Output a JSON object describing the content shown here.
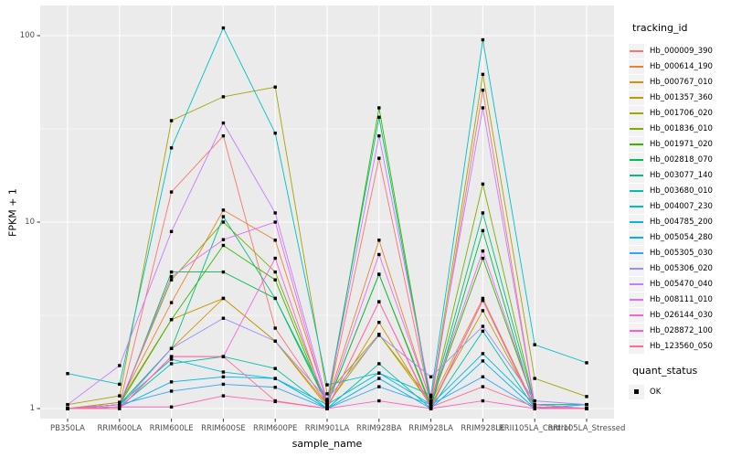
{
  "figure": {
    "background": "#FFFFFF",
    "panel_background": "#EBEBEB",
    "grid_color": "#FFFFFF",
    "axis_text_color": "#4D4D4D",
    "tick_mark_color": "#333333",
    "point_color": "#000000"
  },
  "chart_data": {
    "type": "line",
    "title": "",
    "xlabel": "sample_name",
    "ylabel": "FPKM + 1",
    "y_scale": "log10",
    "y_ticks": [
      1,
      10,
      100
    ],
    "y_tick_labels": [
      "1",
      "10",
      "100"
    ],
    "y_minor_ticks": [
      3.162,
      31.62
    ],
    "ylim": [
      0.88,
      145
    ],
    "grid": true,
    "legend_position": "right",
    "point_shape": "filled-square",
    "categories": [
      "PB350LA",
      "RRIM600LA",
      "RRIM600LE",
      "RRIM600SE",
      "RRIM600PE",
      "RRIM901LA",
      "RRIM928BA",
      "RRIM928LA",
      "RRIM928LE",
      "RRII105LA_Control",
      "RRII105LA_Stressed"
    ],
    "series": [
      {
        "name": "Hb_000009_390",
        "color": "#F8766D",
        "values": [
          1.0,
          1.05,
          14.5,
          29,
          2.7,
          1.05,
          22,
          1.05,
          51,
          1.05,
          1.0
        ]
      },
      {
        "name": "Hb_000614_190",
        "color": "#EA8331",
        "values": [
          1.0,
          1.08,
          3.7,
          11.6,
          8.0,
          1.08,
          8.0,
          1.08,
          3.9,
          1.02,
          1.0
        ]
      },
      {
        "name": "Hb_000767_010",
        "color": "#D89000",
        "values": [
          1.0,
          1.05,
          2.1,
          3.9,
          2.3,
          1.02,
          2.9,
          1.02,
          3.8,
          1.0,
          1.0
        ]
      },
      {
        "name": "Hb_001357_360",
        "color": "#C09B00",
        "values": [
          1.0,
          1.08,
          3.0,
          3.9,
          2.3,
          1.05,
          2.5,
          1.05,
          3.35,
          1.02,
          1.0
        ]
      },
      {
        "name": "Hb_001706_020",
        "color": "#A3A500",
        "values": [
          1.05,
          1.17,
          35,
          47,
          53,
          1.2,
          2.5,
          1.1,
          62,
          1.45,
          1.16
        ]
      },
      {
        "name": "Hb_001836_010",
        "color": "#7CAE00",
        "values": [
          1.0,
          1.05,
          4.9,
          10,
          5.4,
          1.05,
          5.25,
          1.05,
          16,
          1.05,
          1.0
        ]
      },
      {
        "name": "Hb_001971_020",
        "color": "#39B600",
        "values": [
          1.0,
          1.05,
          3.0,
          7.5,
          4.9,
          1.02,
          41,
          1.08,
          6.4,
          1.05,
          1.05
        ]
      },
      {
        "name": "Hb_002818_070",
        "color": "#00BB4E",
        "values": [
          1.0,
          1.02,
          5.4,
          5.4,
          3.9,
          1.05,
          5.25,
          1.02,
          9.0,
          1.0,
          1.0
        ]
      },
      {
        "name": "Hb_003077_140",
        "color": "#00BF7D",
        "values": [
          1.0,
          1.05,
          2.1,
          10.7,
          3.9,
          1.1,
          36.5,
          1.05,
          11.2,
          1.05,
          1.05
        ]
      },
      {
        "name": "Hb_003680_010",
        "color": "#00C1A3",
        "values": [
          1.0,
          1.02,
          1.74,
          1.9,
          1.64,
          1.0,
          1.74,
          1.0,
          2.6,
          1.0,
          1.0
        ]
      },
      {
        "name": "Hb_004007_230",
        "color": "#00BFC4",
        "values": [
          1.54,
          1.35,
          25,
          110,
          30,
          1.34,
          1.55,
          1.18,
          95,
          2.2,
          1.76
        ]
      },
      {
        "name": "Hb_004785_200",
        "color": "#00BAE0",
        "values": [
          1.0,
          1.05,
          1.84,
          1.57,
          1.45,
          1.05,
          1.55,
          1.05,
          1.97,
          1.05,
          1.0
        ]
      },
      {
        "name": "Hb_005054_280",
        "color": "#00B0F6",
        "values": [
          1.0,
          1.02,
          1.39,
          1.48,
          1.45,
          1.0,
          1.45,
          1.0,
          1.8,
          1.0,
          1.0
        ]
      },
      {
        "name": "Hb_005305_030",
        "color": "#35A2FF",
        "values": [
          1.0,
          1.05,
          1.24,
          1.35,
          1.3,
          1.0,
          1.31,
          1.05,
          1.48,
          1.0,
          1.05
        ]
      },
      {
        "name": "Hb_005306_020",
        "color": "#9590FF",
        "values": [
          1.0,
          1.02,
          2.1,
          3.05,
          2.3,
          1.12,
          2.47,
          1.48,
          2.76,
          1.1,
          1.05
        ]
      },
      {
        "name": "Hb_005470_040",
        "color": "#C77CFF",
        "values": [
          1.05,
          1.7,
          8.9,
          34,
          11.2,
          1.1,
          29,
          1.15,
          41,
          1.05,
          1.0
        ]
      },
      {
        "name": "Hb_008111_010",
        "color": "#E76BF3",
        "values": [
          1.0,
          1.05,
          5.1,
          8.05,
          10,
          1.05,
          6.7,
          1.1,
          7.0,
          1.05,
          1.0
        ]
      },
      {
        "name": "Hb_026144_030",
        "color": "#FA62DB",
        "values": [
          1.0,
          1.0,
          1.9,
          1.9,
          6.4,
          1.0,
          3.74,
          1.0,
          3.8,
          1.0,
          1.0
        ]
      },
      {
        "name": "Hb_028872_100",
        "color": "#FF62BC",
        "values": [
          1.0,
          1.02,
          1.02,
          1.17,
          1.09,
          1.0,
          1.1,
          1.0,
          1.1,
          1.0,
          1.0
        ]
      },
      {
        "name": "Hb_123560_050",
        "color": "#FF6A98",
        "values": [
          1.0,
          1.0,
          1.9,
          1.9,
          1.1,
          1.0,
          3.74,
          1.02,
          1.31,
          1.02,
          1.0
        ]
      }
    ]
  },
  "legend": {
    "tracking_title": "tracking_id",
    "quant_title": "quant_status",
    "quant_items": [
      {
        "label": "OK",
        "marker": "black-square"
      }
    ]
  }
}
